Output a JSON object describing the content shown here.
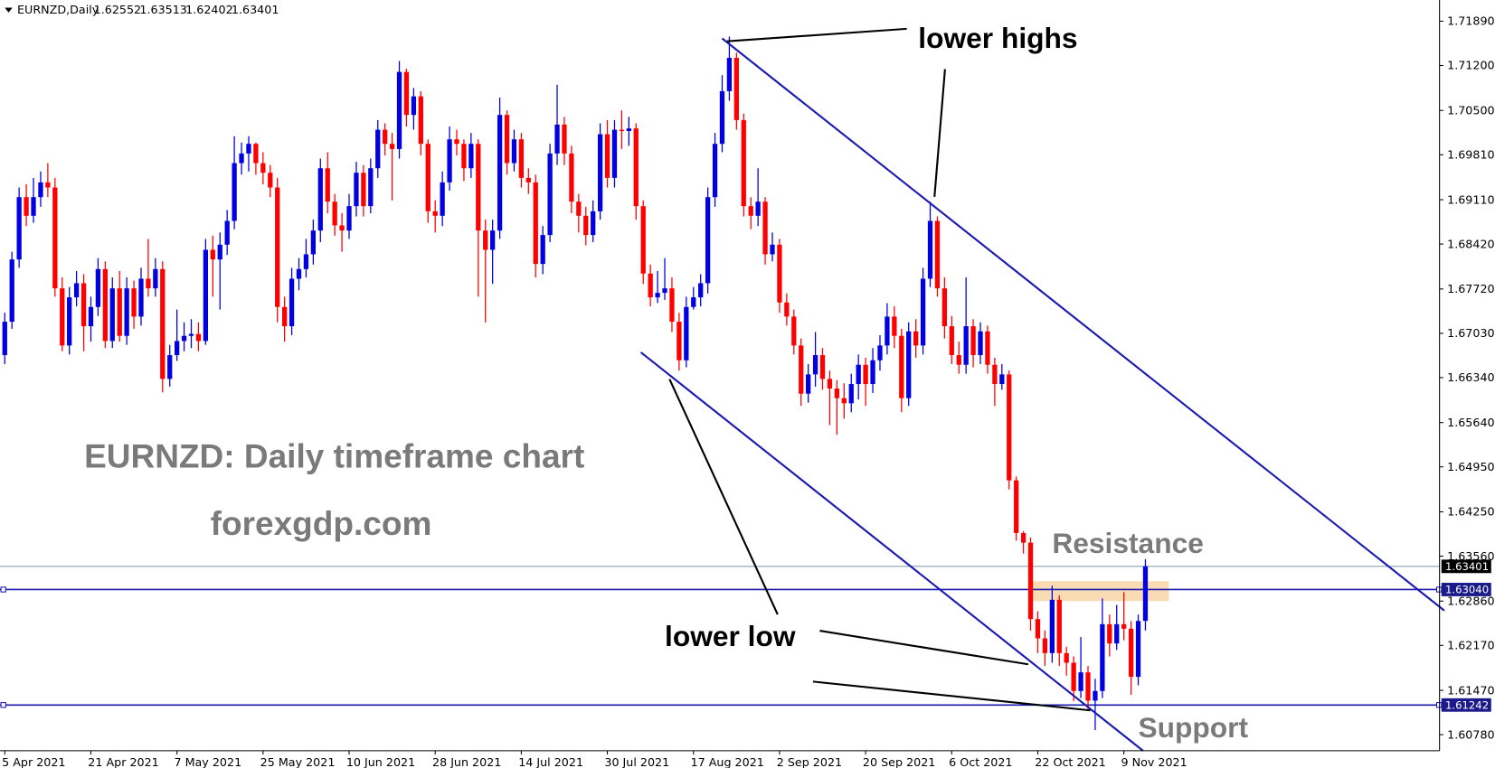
{
  "chart_data": {
    "type": "candlestick",
    "symbol": "EURNZD,Daily",
    "up_color": "#0000e0",
    "down_color": "#ff0000",
    "categories": [
      "5 Apr 2021",
      null,
      null,
      null,
      null,
      null,
      null,
      null,
      null,
      null,
      null,
      null,
      "21 Apr 2021",
      null,
      null,
      null,
      null,
      null,
      null,
      null,
      null,
      null,
      null,
      null,
      "7 May 2021",
      null,
      null,
      null,
      null,
      null,
      null,
      null,
      null,
      null,
      null,
      null,
      "25 May 2021",
      null,
      null,
      null,
      null,
      null,
      null,
      null,
      null,
      null,
      null,
      null,
      "10 Jun 2021",
      null,
      null,
      null,
      null,
      null,
      null,
      null,
      null,
      null,
      null,
      null,
      "28 Jun 2021",
      null,
      null,
      null,
      null,
      null,
      null,
      null,
      null,
      null,
      null,
      null,
      "14 Jul 2021",
      null,
      null,
      null,
      null,
      null,
      null,
      null,
      null,
      null,
      null,
      null,
      "30 Jul 2021",
      null,
      null,
      null,
      null,
      null,
      null,
      null,
      null,
      null,
      null,
      null,
      "17 Aug 2021",
      null,
      null,
      null,
      null,
      null,
      null,
      null,
      null,
      null,
      null,
      null,
      "2 Sep 2021",
      null,
      null,
      null,
      null,
      null,
      null,
      null,
      null,
      null,
      null,
      null,
      "20 Sep 2021",
      null,
      null,
      null,
      null,
      null,
      null,
      null,
      null,
      null,
      null,
      null,
      "6 Oct 2021",
      null,
      null,
      null,
      null,
      null,
      null,
      null,
      null,
      null,
      null,
      null,
      "22 Oct 2021",
      null,
      null,
      null,
      null,
      null,
      null,
      null,
      null,
      null,
      null,
      null,
      "9 Nov 2021",
      null,
      null,
      null
    ],
    "open": [
      1.6669,
      1.6721,
      1.6818,
      1.6915,
      1.6886,
      1.6915,
      1.6938,
      1.693,
      1.6773,
      1.6684,
      1.6759,
      1.6781,
      1.6714,
      1.6744,
      1.6803,
      1.6691,
      1.6773,
      1.6699,
      1.6773,
      1.6729,
      1.6788,
      1.6773,
      1.6803,
      1.6632,
      1.6669,
      1.6691,
      1.6699,
      1.6702,
      1.6691,
      1.6833,
      1.6818,
      1.6841,
      1.6878,
      1.6968,
      1.6983,
      1.6998,
      1.6968,
      1.6953,
      1.693,
      1.6744,
      1.6714,
      1.6788,
      1.6803,
      1.6826,
      1.6863,
      1.696,
      1.6908,
      1.6871,
      1.6863,
      1.6901,
      1.6953,
      1.6901,
      1.696,
      1.702,
      1.6998,
      1.699,
      1.711,
      1.7043,
      1.7072,
      1.6998,
      1.6893,
      1.6886,
      1.6938,
      1.7005,
      1.6998,
      1.696,
      1.6998,
      1.6863,
      1.6833,
      1.6863,
      1.7043,
      1.6968,
      1.7005,
      1.6945,
      1.6938,
      1.6811,
      1.6856,
      1.6983,
      1.7028,
      1.6983,
      1.6908,
      1.6886,
      1.6856,
      1.6893,
      1.7013,
      1.6945,
      1.702,
      1.7018,
      1.7022,
      1.6901,
      1.6796,
      1.6759,
      1.6766,
      1.6773,
      1.6721,
      1.6661,
      1.6744,
      1.6759,
      1.6781,
      1.6915,
      1.6998,
      1.708,
      1.7132,
      1.7035,
      1.6901,
      1.6886,
      1.6908,
      1.6826,
      1.6841,
      1.6751,
      1.6729,
      1.6684,
      1.6609,
      1.6639,
      1.6669,
      1.6632,
      1.6617,
      1.6602,
      1.6594,
      1.6624,
      1.6654,
      1.6624,
      1.6661,
      1.6684,
      1.6729,
      1.6699,
      1.6602,
      1.6706,
      1.6684,
      1.6788,
      1.6878,
      1.6773,
      1.6714,
      1.6669,
      1.6654,
      1.6714,
      1.6669,
      1.6706,
      1.6654,
      1.6624,
      1.6639,
      1.6474,
      1.6392,
      1.6377,
      1.6258,
      1.6228,
      1.6205,
      1.6288,
      1.6205,
      1.619,
      1.6146,
      1.6175,
      1.6131,
      1.6146,
      1.625,
      1.622,
      1.625,
      1.6243,
      1.6168,
      1.62552
    ],
    "high": [
      1.6735,
      1.683,
      1.693,
      1.6935,
      1.6945,
      1.6955,
      1.6968,
      1.6945,
      1.679,
      1.6775,
      1.68,
      1.6795,
      1.676,
      1.682,
      1.6815,
      1.679,
      1.68,
      1.679,
      1.6785,
      1.6805,
      1.685,
      1.682,
      1.6815,
      1.6685,
      1.674,
      1.672,
      1.6725,
      1.672,
      1.685,
      1.6855,
      1.686,
      1.6895,
      1.701,
      1.7,
      1.701,
      1.7,
      1.6985,
      1.6965,
      1.6945,
      1.676,
      1.6805,
      1.682,
      1.685,
      1.688,
      1.6975,
      1.6985,
      1.692,
      1.689,
      1.692,
      1.697,
      1.6965,
      1.6975,
      1.7035,
      1.703,
      1.7015,
      1.7127,
      1.7115,
      1.7085,
      1.708,
      1.7005,
      1.691,
      1.6955,
      1.7025,
      1.702,
      1.7005,
      1.7015,
      1.7005,
      1.688,
      1.688,
      1.707,
      1.705,
      1.702,
      1.7015,
      1.696,
      1.695,
      1.687,
      1.6998,
      1.709,
      1.704,
      1.6995,
      1.692,
      1.69,
      1.691,
      1.703,
      1.7035,
      1.7035,
      1.705,
      1.704,
      1.703,
      1.691,
      1.681,
      1.68,
      1.682,
      1.679,
      1.6735,
      1.676,
      1.6775,
      1.6795,
      1.693,
      1.7015,
      1.7105,
      1.7165,
      1.714,
      1.7045,
      1.6915,
      1.696,
      1.6915,
      1.686,
      1.685,
      1.6765,
      1.674,
      1.6695,
      1.6655,
      1.6705,
      1.668,
      1.6645,
      1.663,
      1.6625,
      1.664,
      1.667,
      1.6665,
      1.668,
      1.67,
      1.675,
      1.6745,
      1.671,
      1.672,
      1.6725,
      1.6805,
      1.6908,
      1.6885,
      1.679,
      1.673,
      1.669,
      1.679,
      1.6725,
      1.672,
      1.6715,
      1.6665,
      1.6655,
      1.6645,
      1.648,
      1.6395,
      1.6385,
      1.627,
      1.624,
      1.631,
      1.6295,
      1.6215,
      1.62,
      1.623,
      1.6185,
      1.6165,
      1.629,
      1.6265,
      1.628,
      1.63,
      1.6255,
      1.6265,
      1.63513
    ],
    "low": [
      1.6655,
      1.671,
      1.6805,
      1.687,
      1.6875,
      1.69,
      1.6915,
      1.676,
      1.6675,
      1.667,
      1.6745,
      1.6675,
      1.669,
      1.673,
      1.668,
      1.668,
      1.669,
      1.6685,
      1.671,
      1.6715,
      1.676,
      1.676,
      1.6611,
      1.662,
      1.666,
      1.6675,
      1.668,
      1.6675,
      1.6685,
      1.676,
      1.674,
      1.6825,
      1.6865,
      1.695,
      1.6955,
      1.695,
      1.6935,
      1.6915,
      1.672,
      1.669,
      1.67,
      1.677,
      1.679,
      1.681,
      1.6845,
      1.689,
      1.6855,
      1.683,
      1.685,
      1.6885,
      1.6885,
      1.689,
      1.6945,
      1.698,
      1.691,
      1.6975,
      1.7025,
      1.702,
      1.698,
      1.6875,
      1.686,
      1.687,
      1.6925,
      1.698,
      1.694,
      1.6945,
      1.676,
      1.672,
      1.678,
      1.685,
      1.695,
      1.6955,
      1.693,
      1.692,
      1.679,
      1.6795,
      1.6845,
      1.6965,
      1.6965,
      1.689,
      1.686,
      1.684,
      1.6845,
      1.688,
      1.693,
      1.693,
      1.699,
      1.6995,
      1.688,
      1.678,
      1.6745,
      1.675,
      1.6755,
      1.6705,
      1.6645,
      1.665,
      1.674,
      1.6745,
      1.6765,
      1.69,
      1.6985,
      1.7065,
      1.702,
      1.6885,
      1.6865,
      1.687,
      1.681,
      1.6815,
      1.6735,
      1.6715,
      1.667,
      1.659,
      1.6595,
      1.662,
      1.6615,
      1.656,
      1.6545,
      1.657,
      1.658,
      1.66,
      1.659,
      1.661,
      1.6645,
      1.667,
      1.668,
      1.658,
      1.659,
      1.6665,
      1.667,
      1.6775,
      1.676,
      1.6695,
      1.6655,
      1.664,
      1.664,
      1.665,
      1.6655,
      1.664,
      1.659,
      1.6615,
      1.646,
      1.638,
      1.636,
      1.624,
      1.6205,
      1.6185,
      1.619,
      1.6185,
      1.617,
      1.613,
      1.6135,
      1.6115,
      1.6085,
      1.6135,
      1.62,
      1.621,
      1.6225,
      1.614,
      1.6155,
      1.62402
    ],
    "close": [
      1.6721,
      1.6818,
      1.6915,
      1.6886,
      1.6915,
      1.6938,
      1.693,
      1.6773,
      1.6684,
      1.6759,
      1.6781,
      1.6714,
      1.6744,
      1.6803,
      1.6691,
      1.6773,
      1.6699,
      1.6773,
      1.6729,
      1.6788,
      1.6773,
      1.6803,
      1.6632,
      1.6669,
      1.6691,
      1.6699,
      1.6702,
      1.6691,
      1.6833,
      1.6818,
      1.6841,
      1.6878,
      1.6968,
      1.6983,
      1.6998,
      1.6968,
      1.6953,
      1.693,
      1.6744,
      1.6714,
      1.6788,
      1.6803,
      1.6826,
      1.6863,
      1.696,
      1.6908,
      1.6871,
      1.6863,
      1.6901,
      1.6953,
      1.6901,
      1.696,
      1.702,
      1.6998,
      1.699,
      1.711,
      1.7043,
      1.7072,
      1.6998,
      1.6893,
      1.6886,
      1.6938,
      1.7005,
      1.6998,
      1.696,
      1.6998,
      1.6863,
      1.6833,
      1.6863,
      1.7043,
      1.6968,
      1.7005,
      1.6945,
      1.6938,
      1.6811,
      1.6856,
      1.6983,
      1.7028,
      1.6983,
      1.6908,
      1.6886,
      1.6856,
      1.6893,
      1.7013,
      1.6945,
      1.702,
      1.7018,
      1.7022,
      1.6901,
      1.6796,
      1.6759,
      1.6766,
      1.6773,
      1.6721,
      1.6661,
      1.6744,
      1.6759,
      1.6781,
      1.6915,
      1.6998,
      1.708,
      1.7132,
      1.7035,
      1.6901,
      1.6886,
      1.6908,
      1.6826,
      1.6841,
      1.6751,
      1.6729,
      1.6684,
      1.6609,
      1.6639,
      1.6669,
      1.6632,
      1.6617,
      1.6602,
      1.6594,
      1.6624,
      1.6654,
      1.6624,
      1.6661,
      1.6684,
      1.6729,
      1.6699,
      1.6602,
      1.6706,
      1.6684,
      1.6788,
      1.6878,
      1.6773,
      1.6714,
      1.6669,
      1.6654,
      1.6714,
      1.6669,
      1.6706,
      1.6654,
      1.6624,
      1.6639,
      1.6474,
      1.6392,
      1.6377,
      1.6258,
      1.6228,
      1.6205,
      1.6288,
      1.6205,
      1.619,
      1.6146,
      1.6175,
      1.6131,
      1.6146,
      1.625,
      1.622,
      1.625,
      1.6243,
      1.6168,
      1.6255,
      1.63401
    ],
    "ylim": [
      1.6053,
      1.7222
    ],
    "yticks": [
      {
        "value": 1.7189,
        "label": "1.71890"
      },
      {
        "value": 1.712,
        "label": "1.71200"
      },
      {
        "value": 1.705,
        "label": "1.70500"
      },
      {
        "value": 1.6981,
        "label": "1.69810"
      },
      {
        "value": 1.6911,
        "label": "1.69110"
      },
      {
        "value": 1.6842,
        "label": "1.68420"
      },
      {
        "value": 1.6772,
        "label": "1.67720"
      },
      {
        "value": 1.6703,
        "label": "1.67030"
      },
      {
        "value": 1.6634,
        "label": "1.66340"
      },
      {
        "value": 1.6564,
        "label": "1.65640"
      },
      {
        "value": 1.6495,
        "label": "1.64950"
      },
      {
        "value": 1.6425,
        "label": "1.64250"
      },
      {
        "value": 1.6356,
        "label": "1.63560"
      },
      {
        "value": 1.6286,
        "label": "1.62860"
      },
      {
        "value": 1.6217,
        "label": "1.62170"
      },
      {
        "value": 1.6147,
        "label": "1.61470"
      },
      {
        "value": 1.6078,
        "label": "1.60780"
      }
    ],
    "hlines": [
      {
        "value": 1.6304,
        "label": "1.63040"
      },
      1.61242
    ],
    "resistance_zone": [
      1.6286,
      1.6317
    ],
    "annotations": {
      "title": "EURNZD: Daily timeframe chart",
      "source": "forexgdp.com",
      "lower_highs": "lower highs",
      "lower_low": "lower low",
      "resistance": "Resistance",
      "support": "Support"
    }
  }
}
